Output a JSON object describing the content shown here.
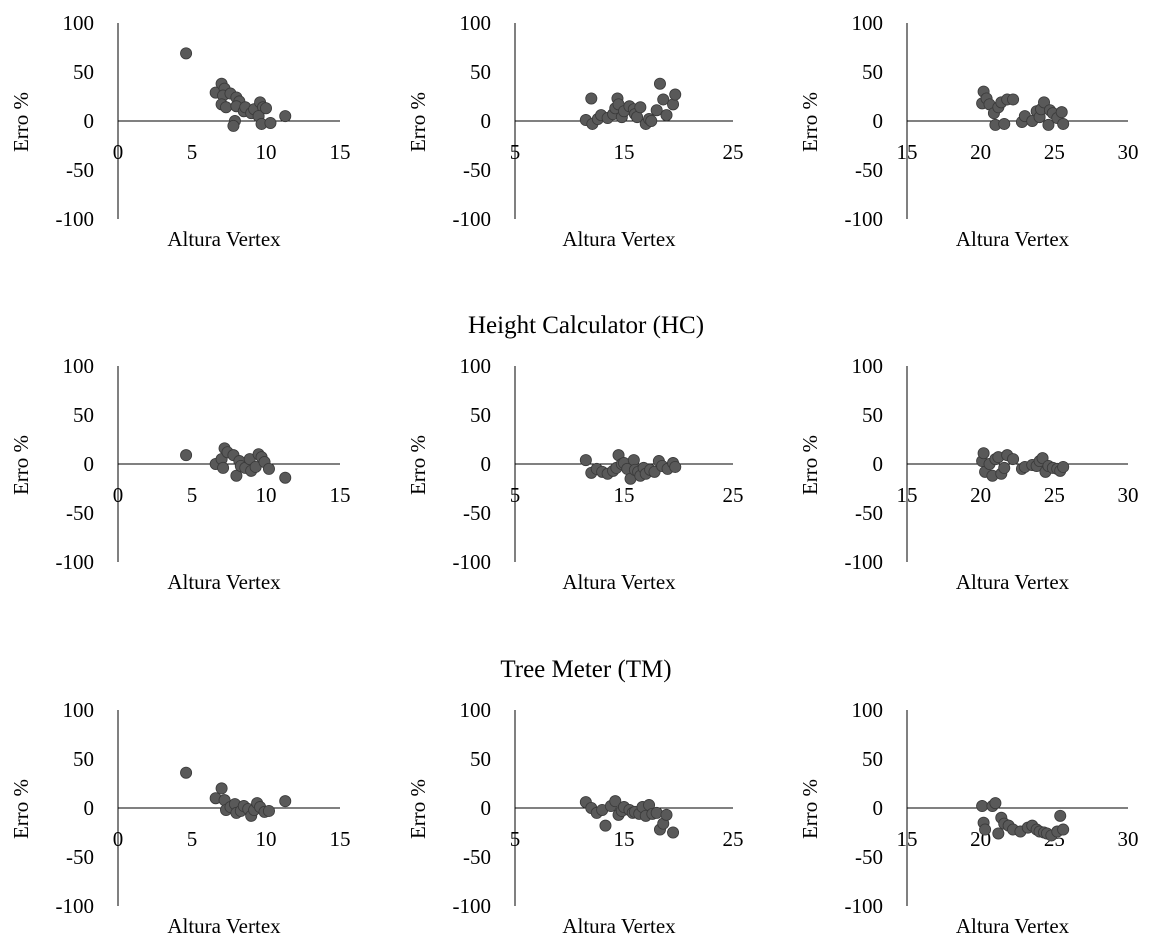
{
  "sections": [
    {
      "title": ""
    },
    {
      "title": "Height Calculator (HC)"
    },
    {
      "title": "Tree Meter (TM)"
    }
  ],
  "chart_data": [
    {
      "type": "scatter",
      "xlabel": "Altura Vertex",
      "ylabel": "Erro %",
      "xlim": [
        0,
        15
      ],
      "ylim": [
        -100,
        100
      ],
      "xticks": [
        "0",
        "5",
        "10",
        "15"
      ],
      "yticks": [
        "100",
        "50",
        "0",
        "-50",
        "-100"
      ],
      "points": [
        [
          4.6,
          69
        ],
        [
          6.6,
          29
        ],
        [
          7.0,
          38
        ],
        [
          7.2,
          33
        ],
        [
          7.1,
          26
        ],
        [
          7.0,
          17
        ],
        [
          7.3,
          14
        ],
        [
          7.6,
          28
        ],
        [
          8.0,
          24
        ],
        [
          8.2,
          20
        ],
        [
          8.0,
          15
        ],
        [
          7.9,
          0
        ],
        [
          7.8,
          -5
        ],
        [
          8.5,
          10
        ],
        [
          8.6,
          14
        ],
        [
          9.0,
          8
        ],
        [
          9.2,
          12
        ],
        [
          9.6,
          19
        ],
        [
          9.8,
          14
        ],
        [
          9.5,
          5
        ],
        [
          9.7,
          -3
        ],
        [
          10.0,
          13
        ],
        [
          10.3,
          -2
        ],
        [
          11.3,
          5
        ]
      ]
    },
    {
      "type": "scatter",
      "xlabel": "Altura Vertex",
      "ylabel": "Erro %",
      "xlim": [
        5,
        25
      ],
      "ylim": [
        -100,
        100
      ],
      "xticks": [
        "5",
        "15",
        "25"
      ],
      "yticks": [
        "100",
        "50",
        "0",
        "-50",
        "-100"
      ],
      "points": [
        [
          11.5,
          1
        ],
        [
          12.0,
          23
        ],
        [
          12.1,
          -3
        ],
        [
          12.6,
          2
        ],
        [
          12.9,
          6
        ],
        [
          13.5,
          3
        ],
        [
          14.0,
          7
        ],
        [
          14.2,
          13
        ],
        [
          14.4,
          23
        ],
        [
          14.5,
          17
        ],
        [
          14.8,
          4
        ],
        [
          15.0,
          10
        ],
        [
          15.5,
          15
        ],
        [
          15.9,
          12
        ],
        [
          16.0,
          7
        ],
        [
          16.2,
          4
        ],
        [
          16.5,
          14
        ],
        [
          17.0,
          -3
        ],
        [
          17.3,
          2
        ],
        [
          17.5,
          0
        ],
        [
          18.0,
          11
        ],
        [
          18.3,
          38
        ],
        [
          18.6,
          22
        ],
        [
          18.9,
          6
        ],
        [
          19.5,
          17
        ],
        [
          19.7,
          27
        ]
      ]
    },
    {
      "type": "scatter",
      "xlabel": "Altura Vertex",
      "ylabel": "Erro %",
      "xlim": [
        15,
        30
      ],
      "ylim": [
        -100,
        100
      ],
      "xticks": [
        "15",
        "20",
        "25",
        "30"
      ],
      "yticks": [
        "100",
        "50",
        "0",
        "-50",
        "-100"
      ],
      "points": [
        [
          20.1,
          18
        ],
        [
          20.2,
          30
        ],
        [
          20.4,
          23
        ],
        [
          20.6,
          17
        ],
        [
          20.9,
          8
        ],
        [
          21.0,
          -4
        ],
        [
          21.2,
          14
        ],
        [
          21.4,
          19
        ],
        [
          21.6,
          -3
        ],
        [
          21.8,
          22
        ],
        [
          22.2,
          22
        ],
        [
          22.8,
          -1
        ],
        [
          23.0,
          5
        ],
        [
          23.5,
          0
        ],
        [
          23.8,
          10
        ],
        [
          24.0,
          4
        ],
        [
          24.1,
          12
        ],
        [
          24.3,
          19
        ],
        [
          24.6,
          -4
        ],
        [
          24.7,
          11
        ],
        [
          24.9,
          8
        ],
        [
          25.2,
          3
        ],
        [
          25.5,
          9
        ],
        [
          25.6,
          -3
        ]
      ]
    },
    {
      "type": "scatter",
      "xlabel": "Altura Vertex",
      "ylabel": "Erro %",
      "xlim": [
        0,
        15
      ],
      "ylim": [
        -100,
        100
      ],
      "xticks": [
        "0",
        "5",
        "10",
        "15"
      ],
      "yticks": [
        "100",
        "50",
        "0",
        "-50",
        "-100"
      ],
      "points": [
        [
          4.6,
          9
        ],
        [
          6.6,
          0
        ],
        [
          7.0,
          5
        ],
        [
          7.2,
          16
        ],
        [
          7.1,
          -4
        ],
        [
          7.4,
          12
        ],
        [
          7.8,
          9
        ],
        [
          8.0,
          -12
        ],
        [
          8.2,
          3
        ],
        [
          8.3,
          -2
        ],
        [
          8.6,
          -4
        ],
        [
          8.9,
          5
        ],
        [
          9.0,
          -7
        ],
        [
          9.3,
          -3
        ],
        [
          9.5,
          10
        ],
        [
          9.7,
          7
        ],
        [
          9.9,
          2
        ],
        [
          10.2,
          -5
        ],
        [
          11.3,
          -14
        ]
      ]
    },
    {
      "type": "scatter",
      "xlabel": "Altura Vertex",
      "ylabel": "Erro %",
      "xlim": [
        5,
        25
      ],
      "ylim": [
        -100,
        100
      ],
      "xticks": [
        "5",
        "15",
        "25"
      ],
      "yticks": [
        "100",
        "50",
        "0",
        "-50",
        "-100"
      ],
      "points": [
        [
          11.5,
          4
        ],
        [
          12.0,
          -9
        ],
        [
          12.5,
          -5
        ],
        [
          13.0,
          -8
        ],
        [
          13.5,
          -10
        ],
        [
          14.0,
          -7
        ],
        [
          14.3,
          -4
        ],
        [
          14.5,
          9
        ],
        [
          14.8,
          0
        ],
        [
          15.0,
          1
        ],
        [
          15.3,
          -5
        ],
        [
          15.6,
          -15
        ],
        [
          15.9,
          4
        ],
        [
          16.0,
          -6
        ],
        [
          16.3,
          -8
        ],
        [
          16.5,
          -12
        ],
        [
          16.8,
          -4
        ],
        [
          17.0,
          -10
        ],
        [
          17.4,
          -6
        ],
        [
          17.8,
          -8
        ],
        [
          18.2,
          3
        ],
        [
          18.5,
          -2
        ],
        [
          19.0,
          -5
        ],
        [
          19.5,
          1
        ],
        [
          19.7,
          -3
        ]
      ]
    },
    {
      "type": "scatter",
      "xlabel": "Altura Vertex",
      "ylabel": "Erro %",
      "xlim": [
        15,
        30
      ],
      "ylim": [
        -100,
        100
      ],
      "xticks": [
        "15",
        "20",
        "25",
        "30"
      ],
      "yticks": [
        "100",
        "50",
        "0",
        "-50",
        "-100"
      ],
      "points": [
        [
          20.1,
          3
        ],
        [
          20.2,
          11
        ],
        [
          20.3,
          -8
        ],
        [
          20.6,
          0
        ],
        [
          20.8,
          -12
        ],
        [
          21.0,
          5
        ],
        [
          21.2,
          7
        ],
        [
          21.4,
          -10
        ],
        [
          21.6,
          -4
        ],
        [
          21.8,
          9
        ],
        [
          22.2,
          5
        ],
        [
          22.8,
          -5
        ],
        [
          23.0,
          -3
        ],
        [
          23.5,
          -1
        ],
        [
          23.8,
          -2
        ],
        [
          24.0,
          3
        ],
        [
          24.2,
          6
        ],
        [
          24.4,
          -8
        ],
        [
          24.6,
          -2
        ],
        [
          24.9,
          -4
        ],
        [
          25.2,
          -5
        ],
        [
          25.4,
          -7
        ],
        [
          25.6,
          -3
        ]
      ]
    },
    {
      "type": "scatter",
      "xlabel": "Altura Vertex",
      "ylabel": "Erro %",
      "xlim": [
        0,
        15
      ],
      "ylim": [
        -100,
        100
      ],
      "xticks": [
        "0",
        "5",
        "10",
        "15"
      ],
      "yticks": [
        "100",
        "50",
        "0",
        "-50",
        "-100"
      ],
      "points": [
        [
          4.6,
          36
        ],
        [
          6.6,
          10
        ],
        [
          7.0,
          20
        ],
        [
          7.2,
          8
        ],
        [
          7.3,
          -2
        ],
        [
          7.6,
          1
        ],
        [
          7.9,
          4
        ],
        [
          8.0,
          -5
        ],
        [
          8.3,
          -3
        ],
        [
          8.5,
          2
        ],
        [
          8.8,
          -1
        ],
        [
          9.0,
          -8
        ],
        [
          9.2,
          -2
        ],
        [
          9.4,
          5
        ],
        [
          9.6,
          1
        ],
        [
          9.9,
          -4
        ],
        [
          10.2,
          -3
        ],
        [
          11.3,
          7
        ]
      ]
    },
    {
      "type": "scatter",
      "xlabel": "Altura Vertex",
      "ylabel": "Erro %",
      "xlim": [
        5,
        25
      ],
      "ylim": [
        -100,
        100
      ],
      "xticks": [
        "5",
        "15",
        "25"
      ],
      "yticks": [
        "100",
        "50",
        "0",
        "-50",
        "-100"
      ],
      "points": [
        [
          11.5,
          6
        ],
        [
          12.0,
          0
        ],
        [
          12.5,
          -5
        ],
        [
          13.0,
          -2
        ],
        [
          13.3,
          -18
        ],
        [
          13.8,
          2
        ],
        [
          14.2,
          7
        ],
        [
          14.5,
          -7
        ],
        [
          14.8,
          -3
        ],
        [
          15.0,
          1
        ],
        [
          15.5,
          -2
        ],
        [
          15.8,
          -5
        ],
        [
          16.0,
          -4
        ],
        [
          16.4,
          -6
        ],
        [
          16.7,
          1
        ],
        [
          17.0,
          -8
        ],
        [
          17.3,
          3
        ],
        [
          17.6,
          -6
        ],
        [
          18.0,
          -5
        ],
        [
          18.3,
          -22
        ],
        [
          18.6,
          -16
        ],
        [
          18.9,
          -7
        ],
        [
          19.5,
          -25
        ]
      ]
    },
    {
      "type": "scatter",
      "xlabel": "Altura Vertex",
      "ylabel": "Erro %",
      "xlim": [
        15,
        30
      ],
      "ylim": [
        -100,
        100
      ],
      "xticks": [
        "15",
        "20",
        "25",
        "30"
      ],
      "yticks": [
        "100",
        "50",
        "0",
        "-50",
        "-100"
      ],
      "points": [
        [
          20.1,
          2
        ],
        [
          20.2,
          -15
        ],
        [
          20.3,
          -22
        ],
        [
          20.8,
          2
        ],
        [
          21.0,
          5
        ],
        [
          21.2,
          -26
        ],
        [
          21.4,
          -10
        ],
        [
          21.6,
          -16
        ],
        [
          21.9,
          -18
        ],
        [
          22.2,
          -22
        ],
        [
          22.7,
          -24
        ],
        [
          23.2,
          -20
        ],
        [
          23.5,
          -18
        ],
        [
          23.8,
          -22
        ],
        [
          24.0,
          -24
        ],
        [
          24.3,
          -25
        ],
        [
          24.5,
          -26
        ],
        [
          24.8,
          -28
        ],
        [
          25.2,
          -24
        ],
        [
          25.4,
          -8
        ],
        [
          25.6,
          -22
        ]
      ]
    }
  ]
}
